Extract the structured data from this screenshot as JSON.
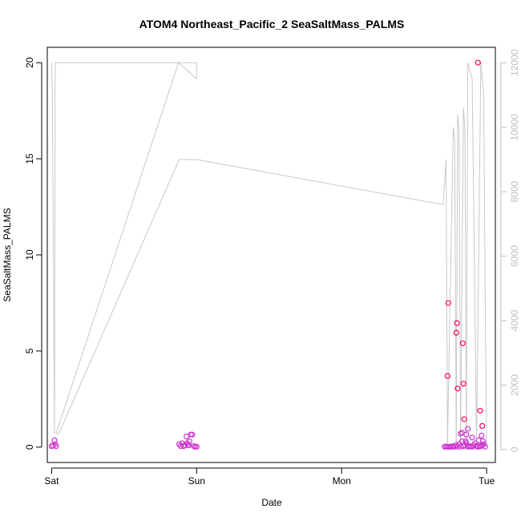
{
  "chart_data": {
    "type": "scatter",
    "title": "ATOM4 Northeast_Pacific_2 SeaSaltMass_PALMS",
    "xlabel": "Date",
    "ylabel": "SeaSaltMass_PALMS",
    "x_unit": "day",
    "x_ticks": [
      {
        "value": 0,
        "label": "Sat"
      },
      {
        "value": 1,
        "label": "Sun"
      },
      {
        "value": 2,
        "label": "Mon"
      },
      {
        "value": 3,
        "label": "Tue"
      }
    ],
    "xlim": [
      -0.03,
      3.06
    ],
    "ylim": [
      -0.8,
      20.8
    ],
    "y_ticks": [
      0,
      5,
      10,
      15,
      20
    ],
    "y2lim": [
      -400,
      12480
    ],
    "y2_ticks": [
      0,
      2000,
      4000,
      6000,
      8000,
      10000,
      12000
    ],
    "grid": false,
    "legend": "none",
    "colors": {
      "points_low": "#cc33cc",
      "points_high": "#ff0066",
      "secondary_line": "#c8c8c8",
      "secondary_axis": "#bebebe"
    },
    "series": [
      {
        "axis": "left",
        "style": "points",
        "x": [
          0.0,
          0.01,
          0.02,
          0.025,
          0.03,
          0.9,
          0.91,
          0.92,
          0.93,
          0.94,
          0.95,
          0.96,
          0.97,
          0.98,
          0.99,
          1.0,
          0.88,
          0.89,
          0.935,
          0.945,
          2.71,
          2.72,
          2.73,
          2.74,
          2.75,
          2.76,
          2.77,
          2.78,
          2.79,
          2.8,
          2.81,
          2.82,
          2.83,
          2.84,
          2.85,
          2.86,
          2.87,
          2.88,
          2.89,
          2.9,
          2.91,
          2.92,
          2.93,
          2.94,
          2.95,
          2.96,
          2.97,
          2.98,
          2.99,
          2.735,
          2.73,
          2.795,
          2.79,
          2.8,
          2.82,
          2.83,
          2.835,
          2.84,
          2.845,
          2.855,
          2.86,
          2.87,
          2.9,
          2.93,
          2.94,
          2.945,
          2.955,
          2.965,
          2.97,
          2.975
        ],
        "y": [
          0.05,
          0.08,
          0.35,
          0.15,
          0.05,
          0.2,
          0.05,
          0.1,
          0.55,
          0.1,
          0.3,
          0.65,
          0.65,
          0.05,
          0.02,
          0.02,
          0.15,
          0.05,
          0.2,
          0.1,
          0.02,
          0.03,
          0.02,
          0.02,
          0.03,
          0.02,
          0.05,
          0.02,
          0.1,
          0.02,
          0.15,
          0.02,
          0.3,
          0.05,
          0.1,
          0.2,
          0.02,
          0.05,
          0.03,
          0.02,
          0.1,
          0.2,
          0.05,
          0.02,
          0.03,
          0.05,
          0.1,
          0.15,
          0.02,
          7.5,
          3.7,
          6.45,
          5.95,
          3.05,
          0.7,
          0.75,
          5.4,
          3.3,
          1.45,
          0.3,
          0.65,
          0.95,
          0.5,
          0.05,
          20.0,
          0.35,
          1.9,
          0.6,
          1.1,
          0.3
        ]
      },
      {
        "axis": "right",
        "style": "line",
        "x": [
          0.0,
          0.005,
          0.02,
          0.025,
          0.03,
          0.035,
          0.05,
          0.9,
          0.92,
          0.935,
          0.94,
          0.96,
          0.975,
          0.985,
          1.0,
          1.0,
          0.875,
          0.03,
          0.05,
          0.88,
          0.9,
          0.92,
          0.96,
          0.98,
          1.0,
          2.7,
          2.72,
          2.73,
          2.77,
          2.78,
          2.79,
          2.8,
          2.81,
          2.82,
          2.84,
          2.85,
          2.86,
          2.87,
          2.9,
          2.93,
          2.96,
          2.98,
          2.99,
          3.0
        ],
        "y": [
          12000,
          11000,
          500,
          12000,
          12000,
          12000,
          12000,
          12000,
          12000,
          12000,
          12000,
          12000,
          12000,
          12000,
          12000,
          11500,
          12000,
          500,
          500,
          9000,
          9000,
          9000,
          9000,
          9000,
          9000,
          7600,
          9000,
          200,
          10000,
          9600,
          200,
          10400,
          9800,
          200,
          10600,
          10000,
          200,
          12000,
          11500,
          200,
          12000,
          11000,
          4800,
          200
        ]
      }
    ]
  }
}
